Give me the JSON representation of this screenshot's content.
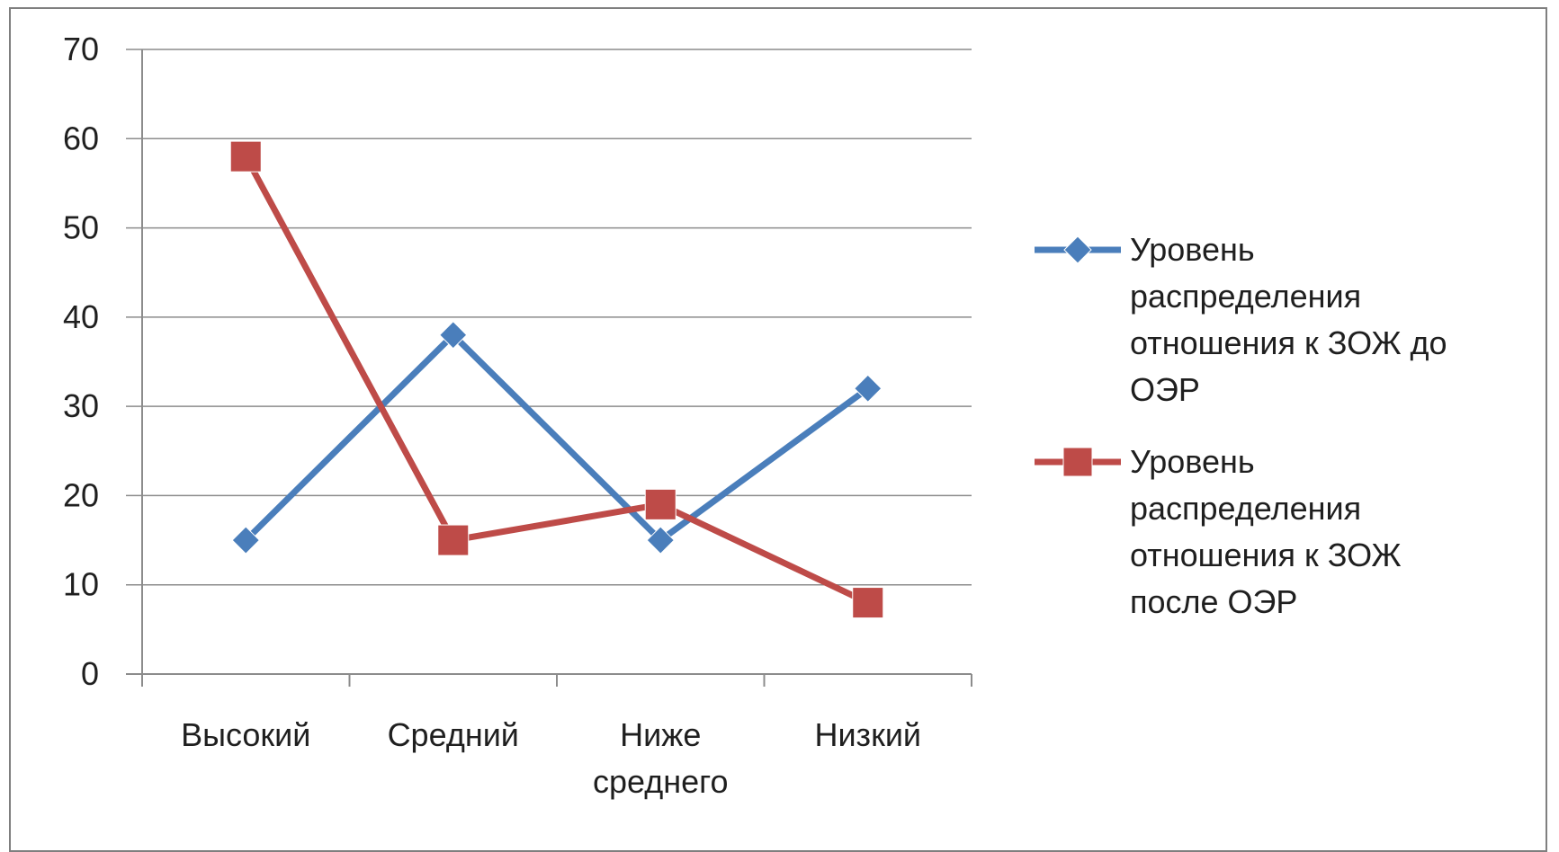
{
  "chart_data": {
    "type": "line",
    "categories": [
      [
        "Высокий"
      ],
      [
        "Средний"
      ],
      [
        "Ниже",
        "среднего"
      ],
      [
        "Низкий"
      ]
    ],
    "series": [
      {
        "name_lines": [
          "Уровень",
          "распределения",
          "отношения к ЗОЖ до",
          "ОЭР"
        ],
        "values": [
          15,
          38,
          15,
          32
        ],
        "color": "#4a7ebb",
        "marker": "diamond"
      },
      {
        "name_lines": [
          "Уровень",
          "распределения",
          "отношения к ЗОЖ",
          "после ОЭР"
        ],
        "values": [
          58,
          15,
          19,
          8
        ],
        "color": "#be4b48",
        "marker": "square"
      }
    ],
    "ylim": [
      0,
      70
    ],
    "yticks": [
      "0",
      "10",
      "20",
      "30",
      "40",
      "50",
      "60",
      "70"
    ],
    "grid": true,
    "legend": "right",
    "gridColor": "#8c8c8c",
    "axisColor": "#8c8c8c"
  }
}
